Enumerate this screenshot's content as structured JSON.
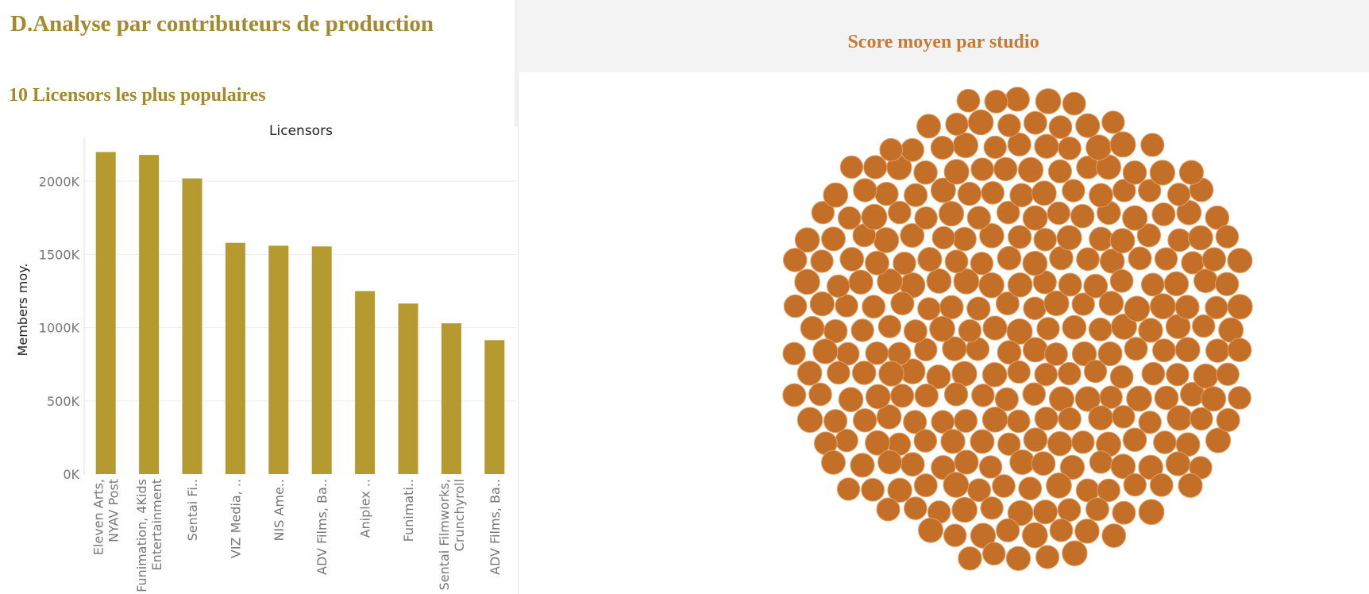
{
  "page": {
    "section_title": "D.Analyse par contributeurs de production",
    "bar_section_title": "10 Licensors les plus populaires",
    "bubble_section_title": "Score moyen par studio"
  },
  "colors": {
    "bar": "#b59a30",
    "bubble": "#c46f28",
    "bubble_stroke": "#e0a26a",
    "title_gold": "#a38a2e",
    "title_orange": "#c87a33"
  },
  "chart_data": [
    {
      "type": "bar",
      "title": "Licensors",
      "ylabel": "Members moy.",
      "xlabel": "",
      "ylim": [
        0,
        2300000
      ],
      "yticks": [
        0,
        500000,
        1000000,
        1500000,
        2000000
      ],
      "ytick_labels": [
        "0K",
        "500K",
        "1000K",
        "1500K",
        "2000K"
      ],
      "grid": true,
      "categories": [
        [
          "Eleven Arts,",
          "NYAV Post"
        ],
        [
          "Funimation, 4Kids",
          "Entertainment"
        ],
        [
          "Sentai Fi.."
        ],
        [
          "VIZ Media, .."
        ],
        [
          "NIS Ame.."
        ],
        [
          "ADV Films, Ba.."
        ],
        [
          "Aniplex .."
        ],
        [
          "Funimati.."
        ],
        [
          "Sentai Filmworks,",
          "Crunchyroll"
        ],
        [
          "ADV Films, Ba.."
        ]
      ],
      "values": [
        2200000,
        2180000,
        2020000,
        1580000,
        1560000,
        1555000,
        1250000,
        1165000,
        1030000,
        915000
      ]
    },
    {
      "type": "packed-bubble",
      "title": "Score moyen par studio",
      "count": 295,
      "labels": "none"
    }
  ]
}
